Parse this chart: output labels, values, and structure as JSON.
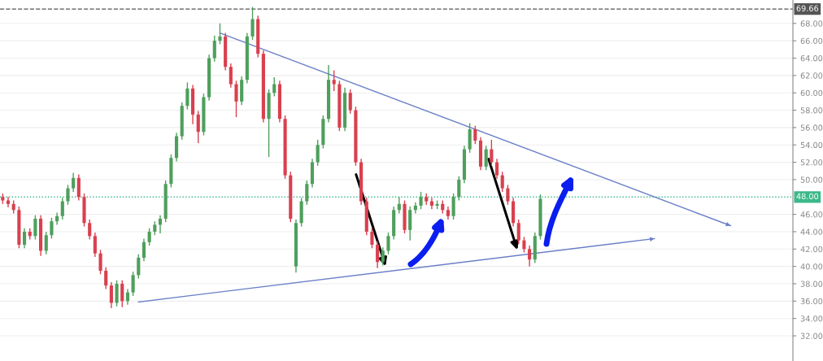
{
  "chart_data": {
    "type": "candlestick",
    "categories": [
      null,
      null,
      null,
      null,
      null,
      null,
      null,
      null,
      null,
      null,
      null,
      null,
      null,
      null,
      null,
      null,
      null,
      null,
      null,
      null,
      null,
      null,
      null,
      null,
      null,
      null,
      null,
      null,
      null,
      null,
      null,
      null,
      null,
      null,
      null,
      null,
      null,
      null,
      null,
      null,
      null,
      null,
      null,
      null,
      null,
      null,
      null,
      null,
      null,
      null,
      null,
      null,
      null,
      null,
      null,
      null,
      null,
      null,
      null,
      null,
      null,
      null,
      null,
      null,
      null,
      null,
      null,
      null,
      null,
      null,
      null,
      null,
      null,
      null,
      null,
      null,
      null,
      null,
      null,
      null,
      null,
      null,
      null,
      null,
      null,
      null,
      null,
      null,
      null,
      null,
      null,
      null,
      null,
      null,
      null,
      null,
      null,
      null,
      null,
      null,
      null,
      null,
      null,
      null,
      null,
      null,
      null,
      null,
      null,
      null,
      null,
      null,
      null,
      null,
      null,
      null,
      null,
      null,
      null,
      null,
      null,
      null,
      null,
      null,
      null,
      null,
      null,
      null,
      null,
      null,
      null,
      null,
      null,
      null,
      null,
      null,
      null,
      null,
      null,
      null,
      null,
      null,
      null,
      null,
      null,
      null
    ],
    "ohlc": [
      [
        48.0,
        48.4,
        47.2,
        47.6
      ],
      [
        47.6,
        48.0,
        46.8,
        47.2
      ],
      [
        47.2,
        47.6,
        46.1,
        46.5
      ],
      [
        46.5,
        46.9,
        42.1,
        42.5
      ],
      [
        42.5,
        44.4,
        42.1,
        44.0
      ],
      [
        44.0,
        44.4,
        43.1,
        43.5
      ],
      [
        43.5,
        45.9,
        43.1,
        45.5
      ],
      [
        45.5,
        45.9,
        41.2,
        41.8
      ],
      [
        41.8,
        44.0,
        41.4,
        43.6
      ],
      [
        43.6,
        45.6,
        43.2,
        45.2
      ],
      [
        45.2,
        46.2,
        44.8,
        45.8
      ],
      [
        45.8,
        47.9,
        45.4,
        47.5
      ],
      [
        47.5,
        49.4,
        47.1,
        49.0
      ],
      [
        49.0,
        50.8,
        48.6,
        50.2
      ],
      [
        50.2,
        50.6,
        47.6,
        48.0
      ],
      [
        48.0,
        48.4,
        44.6,
        45.0
      ],
      [
        45.0,
        45.4,
        43.1,
        43.5
      ],
      [
        43.5,
        43.9,
        41.1,
        41.5
      ],
      [
        41.5,
        41.9,
        39.1,
        39.5
      ],
      [
        39.5,
        39.9,
        37.4,
        37.8
      ],
      [
        37.8,
        38.2,
        35.2,
        35.8
      ],
      [
        35.8,
        38.4,
        35.4,
        38.0
      ],
      [
        38.0,
        38.4,
        35.3,
        36.0
      ],
      [
        36.0,
        37.4,
        35.6,
        37.0
      ],
      [
        37.0,
        39.4,
        36.6,
        39.0
      ],
      [
        39.0,
        41.4,
        38.6,
        41.0
      ],
      [
        41.0,
        43.2,
        40.6,
        42.8
      ],
      [
        42.8,
        44.4,
        42.4,
        44.0
      ],
      [
        44.0,
        45.2,
        43.6,
        44.8
      ],
      [
        44.8,
        45.9,
        43.8,
        45.5
      ],
      [
        45.5,
        49.9,
        45.1,
        49.5
      ],
      [
        49.5,
        52.9,
        49.1,
        52.5
      ],
      [
        52.5,
        55.4,
        52.1,
        55.0
      ],
      [
        55.0,
        58.9,
        54.6,
        58.5
      ],
      [
        58.5,
        61.2,
        58.1,
        60.5
      ],
      [
        60.5,
        60.9,
        56.4,
        57.5
      ],
      [
        57.5,
        57.9,
        54.2,
        55.5
      ],
      [
        55.5,
        59.9,
        55.1,
        59.5
      ],
      [
        59.5,
        64.4,
        59.1,
        64.0
      ],
      [
        64.0,
        66.6,
        63.6,
        66.0
      ],
      [
        66.0,
        68.0,
        65.6,
        66.5
      ],
      [
        66.5,
        66.9,
        62.6,
        63.0
      ],
      [
        63.0,
        63.4,
        60.6,
        61.0
      ],
      [
        61.0,
        61.4,
        57.2,
        59.0
      ],
      [
        59.0,
        61.9,
        58.6,
        61.5
      ],
      [
        61.5,
        66.9,
        61.1,
        66.5
      ],
      [
        66.5,
        69.9,
        66.1,
        68.5
      ],
      [
        68.5,
        68.9,
        64.1,
        64.5
      ],
      [
        64.5,
        64.9,
        56.6,
        57.0
      ],
      [
        57.0,
        60.4,
        52.6,
        60.0
      ],
      [
        60.0,
        61.8,
        59.6,
        61.0
      ],
      [
        61.0,
        61.4,
        56.6,
        57.0
      ],
      [
        57.0,
        57.4,
        50.1,
        50.5
      ],
      [
        50.5,
        50.9,
        45.1,
        45.5
      ],
      [
        40.0,
        45.4,
        39.3,
        45.0
      ],
      [
        45.0,
        47.9,
        44.6,
        47.5
      ],
      [
        47.5,
        49.9,
        47.1,
        49.5
      ],
      [
        49.5,
        52.4,
        49.1,
        52.0
      ],
      [
        52.0,
        54.6,
        51.6,
        54.0
      ],
      [
        54.0,
        57.4,
        53.6,
        57.0
      ],
      [
        57.0,
        63.2,
        56.6,
        61.5
      ],
      [
        61.5,
        62.6,
        60.2,
        61.0
      ],
      [
        61.0,
        61.4,
        55.6,
        56.0
      ],
      [
        56.0,
        60.6,
        55.6,
        60.0
      ],
      [
        60.0,
        60.4,
        57.6,
        58.0
      ],
      [
        58.0,
        58.4,
        51.6,
        52.0
      ],
      [
        52.0,
        52.4,
        47.1,
        47.5
      ],
      [
        47.5,
        47.9,
        43.6,
        44.0
      ],
      [
        44.0,
        44.4,
        42.1,
        42.5
      ],
      [
        42.5,
        42.9,
        39.8,
        40.5
      ],
      [
        40.5,
        42.2,
        40.1,
        41.8
      ],
      [
        41.8,
        43.9,
        41.4,
        43.5
      ],
      [
        43.5,
        46.9,
        43.1,
        46.5
      ],
      [
        46.5,
        48.0,
        46.1,
        47.2
      ],
      [
        47.2,
        47.6,
        43.8,
        44.2
      ],
      [
        44.2,
        46.9,
        43.0,
        46.5
      ],
      [
        46.5,
        47.4,
        46.1,
        47.0
      ],
      [
        47.0,
        48.6,
        46.6,
        48.0
      ],
      [
        48.0,
        48.4,
        47.1,
        47.5
      ],
      [
        47.5,
        47.9,
        46.6,
        47.0
      ],
      [
        47.0,
        47.6,
        46.6,
        47.2
      ],
      [
        47.2,
        47.6,
        46.1,
        46.5
      ],
      [
        46.5,
        46.9,
        45.4,
        45.8
      ],
      [
        45.8,
        48.4,
        45.4,
        48.0
      ],
      [
        48.0,
        50.4,
        47.6,
        50.0
      ],
      [
        50.0,
        53.9,
        49.6,
        53.5
      ],
      [
        53.5,
        56.5,
        53.1,
        55.8
      ],
      [
        55.8,
        56.2,
        54.1,
        54.5
      ],
      [
        54.5,
        54.9,
        51.1,
        51.5
      ],
      [
        51.5,
        53.9,
        51.1,
        53.5
      ],
      [
        53.5,
        54.6,
        51.6,
        52.0
      ],
      [
        52.0,
        52.4,
        50.1,
        50.5
      ],
      [
        50.5,
        50.9,
        48.6,
        49.0
      ],
      [
        49.0,
        49.4,
        47.1,
        47.5
      ],
      [
        47.5,
        47.9,
        44.6,
        45.0
      ],
      [
        45.0,
        45.4,
        42.6,
        43.0
      ],
      [
        43.0,
        43.4,
        41.6,
        42.0
      ],
      [
        42.0,
        42.4,
        40.0,
        40.8
      ],
      [
        40.8,
        43.9,
        40.4,
        43.5
      ],
      [
        43.5,
        48.3,
        43.1,
        47.8
      ],
      null,
      null,
      null,
      null,
      null,
      null,
      null,
      null,
      null,
      null,
      null,
      null,
      null,
      null,
      null,
      null,
      null,
      null,
      null,
      null,
      null,
      null,
      null,
      null,
      null,
      null,
      null,
      null,
      null,
      null,
      null,
      null,
      null,
      null,
      null,
      null,
      null,
      null,
      null,
      null,
      null,
      null,
      null,
      null,
      null,
      null
    ],
    "colors": [
      "#d9404f",
      "#d9404f",
      "#d9404f",
      "#d9404f",
      "#4e9f5c",
      "#d9404f",
      "#4e9f5c",
      "#d9404f",
      "#4e9f5c",
      "#4e9f5c",
      "#4e9f5c",
      "#4e9f5c",
      "#4e9f5c",
      "#4e9f5c",
      "#d9404f",
      "#d9404f",
      "#d9404f",
      "#d9404f",
      "#d9404f",
      "#d9404f",
      "#d9404f",
      "#4e9f5c",
      "#d9404f",
      "#4e9f5c",
      "#4e9f5c",
      "#4e9f5c",
      "#4e9f5c",
      "#4e9f5c",
      "#4e9f5c",
      "#4e9f5c",
      "#4e9f5c",
      "#4e9f5c",
      "#4e9f5c",
      "#4e9f5c",
      "#4e9f5c",
      "#d9404f",
      "#d9404f",
      "#4e9f5c",
      "#4e9f5c",
      "#4e9f5c",
      "#4e9f5c",
      "#d9404f",
      "#d9404f",
      "#d9404f",
      "#4e9f5c",
      "#4e9f5c",
      "#4e9f5c",
      "#d9404f",
      "#d9404f",
      "#4e9f5c",
      "#4e9f5c",
      "#d9404f",
      "#d9404f",
      "#d9404f",
      "#4e9f5c",
      "#4e9f5c",
      "#4e9f5c",
      "#4e9f5c",
      "#4e9f5c",
      "#4e9f5c",
      "#4e9f5c",
      "#d9404f",
      "#d9404f",
      "#4e9f5c",
      "#d9404f",
      "#d9404f",
      "#d9404f",
      "#d9404f",
      "#d9404f",
      "#d9404f",
      "#4e9f5c",
      "#4e9f5c",
      "#4e9f5c",
      "#4e9f5c",
      "#d9404f",
      "#4e9f5c",
      "#4e9f5c",
      "#4e9f5c",
      "#d9404f",
      "#d9404f",
      "#4e9f5c",
      "#d9404f",
      "#d9404f",
      "#4e9f5c",
      "#4e9f5c",
      "#4e9f5c",
      "#4e9f5c",
      "#d9404f",
      "#d9404f",
      "#4e9f5c",
      "#d9404f",
      "#d9404f",
      "#d9404f",
      "#d9404f",
      "#d9404f",
      "#d9404f",
      "#d9404f",
      "#d9404f",
      "#4e9f5c",
      "#4e9f5c",
      null,
      null,
      null,
      null,
      null,
      null,
      null,
      null,
      null,
      null,
      null,
      null,
      null,
      null,
      null,
      null,
      null,
      null,
      null,
      null,
      null,
      null,
      null,
      null,
      null,
      null,
      null,
      null,
      null,
      null,
      null,
      null,
      null,
      null,
      null,
      null,
      null,
      null,
      null,
      null,
      null,
      null,
      null,
      null,
      null,
      null
    ],
    "series": [
      {
        "type": "line",
        "color": "#6a7fc8",
        "values": [
          null,
          null,
          null,
          null,
          null,
          null,
          null,
          null,
          null,
          null,
          null,
          null,
          null,
          null,
          null,
          null,
          null,
          null,
          null,
          null,
          null,
          null,
          null,
          null,
          null,
          null,
          null,
          null,
          null,
          null,
          null,
          null,
          null,
          null,
          null,
          null,
          null,
          null,
          null,
          null,
          66.9,
          null,
          null,
          null,
          null,
          null,
          null,
          null,
          null,
          null,
          null,
          null,
          null,
          null,
          null,
          null,
          null,
          null,
          null,
          null,
          null,
          null,
          null,
          null,
          null,
          null,
          null,
          null,
          null,
          null,
          null,
          null,
          null,
          null,
          null,
          null,
          null,
          null,
          null,
          null,
          null,
          null,
          null,
          null,
          null,
          null,
          null,
          null,
          null,
          null,
          null,
          null,
          null,
          null,
          null,
          null,
          null,
          null,
          null,
          null,
          null,
          null,
          null,
          null,
          null,
          null,
          null,
          null,
          null,
          null,
          null,
          null,
          null,
          null,
          null,
          null,
          null,
          null,
          null,
          null,
          null,
          null,
          null,
          null,
          null,
          null,
          null,
          null,
          null,
          null,
          null,
          null,
          null,
          null,
          44.7,
          null,
          null,
          null,
          null,
          null,
          null,
          null,
          null,
          null,
          null,
          null
        ]
      },
      {
        "type": "line",
        "color": "#6a7fc8",
        "values": [
          null,
          null,
          null,
          null,
          null,
          null,
          null,
          null,
          null,
          null,
          null,
          null,
          null,
          null,
          null,
          null,
          null,
          null,
          null,
          null,
          null,
          null,
          null,
          null,
          null,
          35.9,
          null,
          null,
          null,
          null,
          null,
          null,
          null,
          null,
          null,
          null,
          null,
          null,
          null,
          null,
          null,
          null,
          null,
          null,
          null,
          null,
          null,
          null,
          null,
          null,
          null,
          null,
          null,
          null,
          null,
          null,
          null,
          null,
          null,
          null,
          null,
          null,
          null,
          null,
          null,
          null,
          null,
          null,
          null,
          null,
          null,
          null,
          null,
          null,
          null,
          null,
          null,
          null,
          null,
          null,
          null,
          null,
          null,
          null,
          null,
          null,
          null,
          null,
          null,
          null,
          null,
          null,
          null,
          null,
          null,
          null,
          null,
          null,
          null,
          null,
          null,
          null,
          null,
          null,
          null,
          null,
          null,
          null,
          null,
          null,
          null,
          null,
          null,
          null,
          null,
          null,
          null,
          null,
          null,
          null,
          43.2,
          null,
          null,
          null,
          null,
          null,
          null,
          null,
          null,
          null,
          null,
          null,
          null,
          null,
          null,
          null,
          null,
          null,
          null,
          null,
          null,
          null,
          null,
          null,
          null,
          null
        ]
      }
    ],
    "ref_lines": [
      {
        "axis": "y",
        "value": 69.66,
        "label": "69.66",
        "color": "#555555",
        "line_style": "dashed"
      },
      {
        "axis": "y",
        "value": 48,
        "label": "48.00",
        "color": "#3cb88a",
        "line_style": "dotted"
      }
    ],
    "ylim": [
      29.1,
      70.7
    ],
    "yticks": [
      {
        "value": 32,
        "label": "32.00"
      },
      {
        "value": 34,
        "label": "34.00"
      },
      {
        "value": 36,
        "label": "36.00"
      },
      {
        "value": 38,
        "label": "38.00"
      },
      {
        "value": 40,
        "label": "40.00"
      },
      {
        "value": 42,
        "label": "42.00"
      },
      {
        "value": 44,
        "label": "44.00"
      },
      {
        "value": 46,
        "label": "46.00"
      },
      {
        "value": 50,
        "label": "50.00"
      },
      {
        "value": 52,
        "label": "52.00"
      },
      {
        "value": 54,
        "label": "54.00"
      },
      {
        "value": 56,
        "label": "56.00"
      },
      {
        "value": 58,
        "label": "58.00"
      },
      {
        "value": 60,
        "label": "60.00"
      },
      {
        "value": 62,
        "label": "62.00"
      },
      {
        "value": 64,
        "label": "64.00"
      },
      {
        "value": 66,
        "label": "66.00"
      },
      {
        "value": 68,
        "label": "68.00"
      }
    ],
    "tick_labels": "y",
    "grid": "y"
  }
}
